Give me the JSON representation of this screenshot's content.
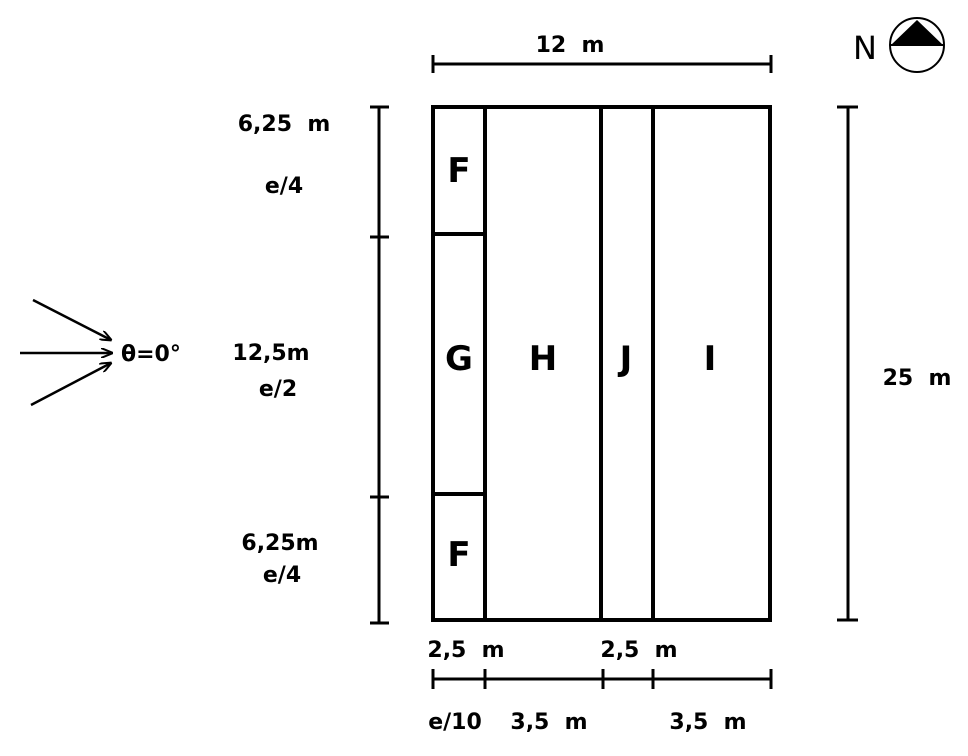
{
  "zones": {
    "f_top": "F",
    "g": "G",
    "f_bottom": "F",
    "h": "H",
    "j": "J",
    "i": "I"
  },
  "dimensions": {
    "width_total": "12  m",
    "height_total": "25  m",
    "left_top_len": "6,25  m",
    "left_top_ratio": "e/4",
    "left_mid_len": "12,5m",
    "left_mid_ratio": "e/2",
    "left_bot_len": "6,25m",
    "left_bot_ratio": "e/4",
    "bottom_f_width": "2,5  m",
    "bottom_j_width": "2,5  m",
    "bottom_f_ratio": "e/10",
    "bottom_h_width": "3,5  m",
    "bottom_i_width": "3,5  m"
  },
  "wind": {
    "angle_label": "θ=0°"
  },
  "compass": {
    "label": "N",
    "icon": "north-arrow-icon"
  }
}
